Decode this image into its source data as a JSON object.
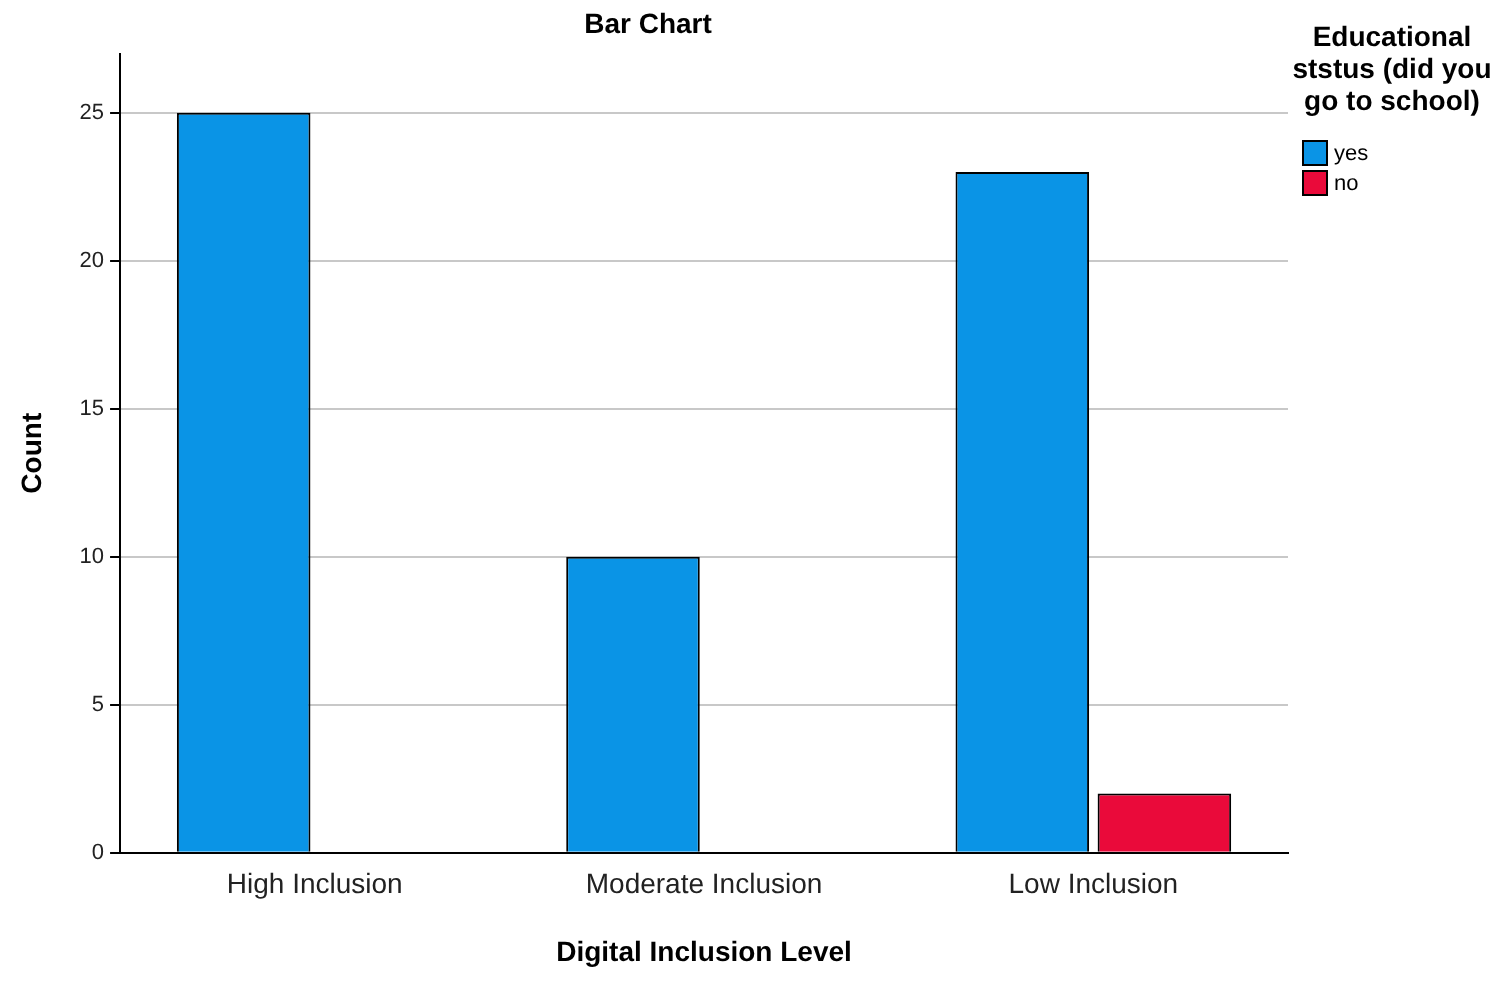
{
  "chart_data": {
    "type": "bar",
    "title": "Bar Chart",
    "xlabel": "Digital Inclusion Level",
    "ylabel": "Count",
    "legend_title": "Educational ststus (did you go to school)",
    "categories": [
      "High Inclusion",
      "Moderate Inclusion",
      "Low Inclusion"
    ],
    "series": [
      {
        "name": "yes",
        "color": "#0a94e6",
        "values": [
          25,
          10,
          23
        ]
      },
      {
        "name": "no",
        "color": "#ea0a3a",
        "values": [
          null,
          null,
          2
        ]
      }
    ],
    "ylim": [
      0,
      27
    ],
    "yticks": [
      0,
      5,
      10,
      15,
      20,
      25
    ],
    "grid": "y",
    "legend": "top right"
  }
}
